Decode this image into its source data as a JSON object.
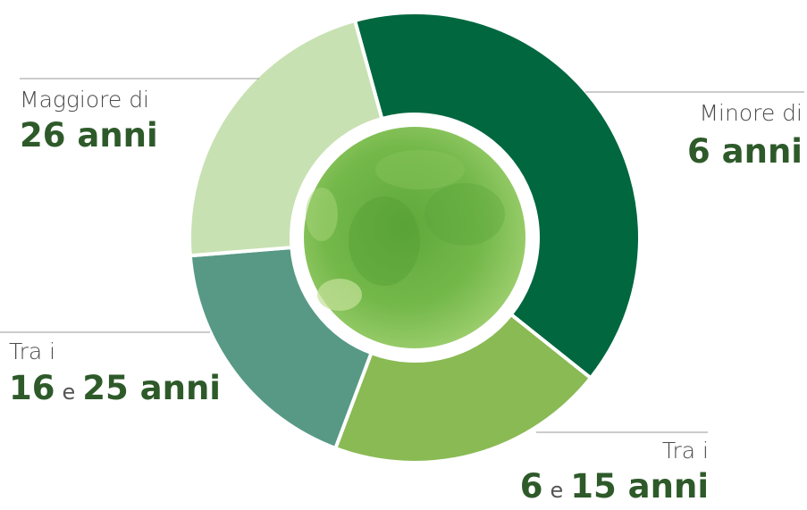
{
  "chart_data": {
    "type": "donut",
    "values": [
      40,
      20,
      18,
      22
    ],
    "colors": [
      "#00673f",
      "#8aba54",
      "#579985",
      "#c8e1b2"
    ],
    "labels": [
      {
        "line1": "Minore di",
        "line2": [
          "6 anni"
        ]
      },
      {
        "line1": "Tra i",
        "line2": [
          "6",
          "e",
          "15 anni"
        ]
      },
      {
        "line1": "Tra i",
        "line2": [
          "16",
          "e",
          "25 anni"
        ]
      },
      {
        "line1": "Maggiore di",
        "line2": [
          "26 anni"
        ]
      }
    ]
  }
}
